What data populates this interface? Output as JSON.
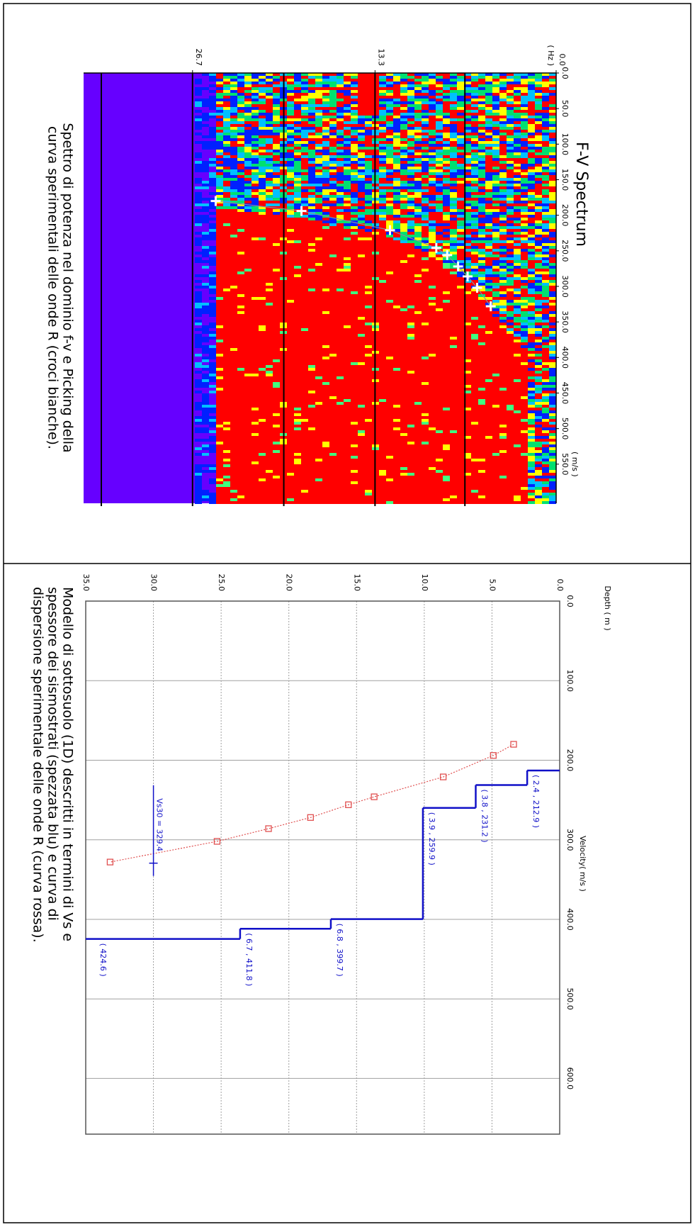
{
  "chart_data": [
    {
      "type": "scatter",
      "title": "F-V Spectrum",
      "x_label": "( m/s )",
      "y_label": "( Hz )",
      "xlim": [
        0,
        605
      ],
      "xticks": [
        {
          "value": 0,
          "label": "0.0"
        },
        {
          "value": 50,
          "label": "50.0"
        },
        {
          "value": 100,
          "label": "100.0"
        },
        {
          "value": 150,
          "label": "150.0"
        },
        {
          "value": 200,
          "label": "200.0"
        },
        {
          "value": 250,
          "label": "250.0"
        },
        {
          "value": 300,
          "label": "300.0"
        },
        {
          "value": 350,
          "label": "350.0"
        },
        {
          "value": 400,
          "label": "400.0"
        },
        {
          "value": 450,
          "label": "450.0"
        },
        {
          "value": 500,
          "label": "500.0"
        },
        {
          "value": 550,
          "label": "550.0"
        }
      ],
      "ylim": [
        0,
        34.7
      ],
      "yticks": [
        {
          "value": 0,
          "label": "0.0"
        },
        13.3,
        26.7
      ],
      "grid_lines": [
        6.7,
        13.3,
        20.0,
        26.7,
        33.4
      ],
      "series": [
        {
          "color": "#ffffff",
          "x": [
            328,
            302,
            286,
            272,
            256,
            246,
            221,
            194,
            180
          ],
          "values": [
            4.8,
            5.8,
            6.5,
            7.2,
            8.0,
            8.8,
            12.2,
            18.7,
            25.0
          ]
        }
      ],
      "caption": [
        "Spettro di potenza nel dominio f-v e Picking della",
        "curva sperimentali delle onde R (croci bianche)."
      ]
    },
    {
      "type": "profile",
      "x_label": "Velocity( m/s )",
      "y_label": "Depth ( m )",
      "xlim": [
        0,
        670
      ],
      "xticks": [
        {
          "value": 0,
          "label": "0.0"
        },
        {
          "value": 100,
          "label": "100.0"
        },
        {
          "value": 200,
          "label": "200.0"
        },
        {
          "value": 300,
          "label": "300.0"
        },
        {
          "value": 400,
          "label": "400.0"
        },
        {
          "value": 500,
          "label": "500.0"
        },
        {
          "value": 600,
          "label": "600.0"
        }
      ],
      "ylim": [
        0,
        35
      ],
      "yticks": [
        {
          "value": 0,
          "label": "0.0"
        },
        {
          "value": 5,
          "label": "5.0"
        },
        {
          "value": 10,
          "label": "10.0"
        },
        {
          "value": 15,
          "label": "15.0"
        },
        {
          "value": 20,
          "label": "20.0"
        },
        {
          "value": 25,
          "label": "25.0"
        },
        {
          "value": 30,
          "label": "30.0"
        },
        {
          "value": 35,
          "label": "35.0"
        }
      ],
      "series": [
        {
          "color": "#1010c8",
          "thickness": [
            2.4,
            3.8,
            3.9,
            6.8,
            6.7,
            null
          ],
          "values": [
            212.9,
            231.2,
            259.9,
            399.7,
            411.8,
            424.6
          ],
          "value_labels": [
            "( 2.4 , 212.9 )",
            "( 3.8 , 231.2 )",
            "( 3.9 , 259.9 )",
            "( 6.8 , 399.7 )",
            "( 6.7 , 411.8 )",
            "( 424.6 )"
          ]
        },
        {
          "color": "#e05050",
          "x": [
            180,
            194,
            221,
            246,
            256,
            272,
            286,
            302,
            328
          ],
          "values": [
            3.4,
            4.9,
            8.6,
            13.7,
            15.6,
            18.4,
            21.5,
            25.3,
            33.2
          ]
        }
      ],
      "vs30": 329.4,
      "vs30_depth": 30,
      "vs30_label": "Vs30 = 329.4",
      "caption": [
        "Modello di sottosuolo (1D) descritti in termini di Vs e",
        "spessore dei sismostrati (spezzata blu) e curva di",
        "dispersione sperimentale delle onde R (curva rossa)."
      ]
    }
  ]
}
